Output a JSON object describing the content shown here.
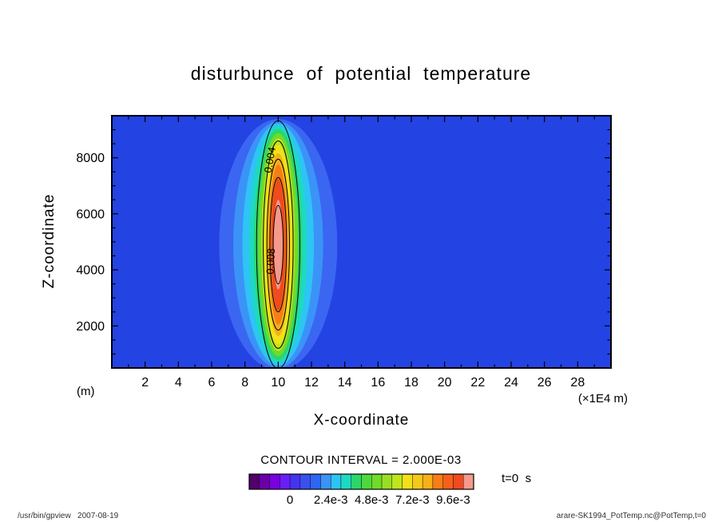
{
  "footer": {
    "left": "/usr/bin/gpview   2007-08-19",
    "right": "arare-SK1994_PotTemp.nc@PotTemp,t=0"
  },
  "chart_data": {
    "type": "heatmap",
    "subtype": "filled-contour",
    "title": "disturbunce  of  potential  temperature",
    "xlabel": "X-coordinate",
    "xunit": "(×1E4 m)",
    "ylabel": "Z-coordinate",
    "yunit": "(m)",
    "xlim": [
      0,
      30
    ],
    "ylim": [
      500,
      9500
    ],
    "x_major_ticks": [
      2,
      4,
      6,
      8,
      10,
      12,
      14,
      16,
      18,
      20,
      22,
      24,
      26,
      28
    ],
    "x_minor_ticks": [
      1,
      3,
      5,
      7,
      9,
      11,
      13,
      15,
      17,
      19,
      21,
      23,
      25,
      27,
      29
    ],
    "y_major_ticks": [
      2000,
      4000,
      6000,
      8000
    ],
    "y_minor_ticks": [
      1000,
      1500,
      2500,
      3000,
      3500,
      4500,
      5000,
      5500,
      6500,
      7000,
      7500,
      8500,
      9000
    ],
    "contour_interval": 0.002,
    "contour_interval_label": "CONTOUR INTERVAL = 2.000E-03",
    "time_label": "t=0  s",
    "background_color": "#2343e3",
    "field": {
      "description": "vertically elongated warm potential-temperature anomaly centered at x=10 (x1E4 m), z=4900 m; background value 0",
      "center_x": 10,
      "center_z": 4900,
      "peak_value": 0.011,
      "background_value": 0
    },
    "fill_levels": [
      {
        "color": "#3a66f2",
        "rx": 3.55,
        "rz": 4480
      },
      {
        "color": "#3b93f7",
        "rx": 2.7,
        "rz": 4400
      },
      {
        "color": "#2ec4f5",
        "rx": 2.15,
        "rz": 4320
      },
      {
        "color": "#1ed9c2",
        "rx": 1.75,
        "rz": 4230
      },
      {
        "color": "#2bd66b",
        "rx": 1.45,
        "rz": 4120
      },
      {
        "color": "#6fdb2b",
        "rx": 1.2,
        "rz": 3980
      },
      {
        "color": "#bfe51e",
        "rx": 1.0,
        "rz": 3800
      },
      {
        "color": "#f2e019",
        "rx": 0.84,
        "rz": 3560
      },
      {
        "color": "#f5b117",
        "rx": 0.7,
        "rz": 3260
      },
      {
        "color": "#f77e17",
        "rx": 0.56,
        "rz": 2860
      },
      {
        "color": "#f04a1e",
        "rx": 0.43,
        "rz": 2350
      },
      {
        "color": "#f5998c",
        "rx": 0.28,
        "rz": 1600
      }
    ],
    "contour_lines": [
      {
        "level": 0.002,
        "rx": 1.3,
        "rz": 4420
      },
      {
        "level": 0.004,
        "rx": 0.9,
        "rz": 3700,
        "label": "0.004",
        "label_z": 7900,
        "label_dx": -6,
        "label_angle": -80
      },
      {
        "level": 0.006,
        "rx": 0.68,
        "rz": 3050
      },
      {
        "level": 0.008,
        "rx": 0.5,
        "rz": 2400,
        "label": "0.008",
        "label_z": 4300,
        "label_dx": -5,
        "label_angle": -87
      },
      {
        "level": 0.01,
        "rx": 0.3,
        "rz": 1400
      }
    ],
    "colorbar": {
      "min": -0.0024,
      "max": 0.0108,
      "cell_interval": 0.0006,
      "colors": [
        "#52006b",
        "#6a00a8",
        "#7a00e0",
        "#6a1ef7",
        "#4633f2",
        "#3a50ee",
        "#2d66f0",
        "#3b93f7",
        "#2ec4f5",
        "#1ed9c2",
        "#2bd66b",
        "#4fd83d",
        "#6fdb2b",
        "#9ade22",
        "#bfe51e",
        "#f2e019",
        "#f5c917",
        "#f5b117",
        "#f77e17",
        "#f4601c",
        "#f04a1e",
        "#f5998c"
      ],
      "labels": [
        {
          "text": "0",
          "value": 0
        },
        {
          "text": "2.4e-3",
          "value": 0.0024
        },
        {
          "text": "4.8e-3",
          "value": 0.0048
        },
        {
          "text": "7.2e-3",
          "value": 0.0072
        },
        {
          "text": "9.6e-3",
          "value": 0.0096
        }
      ]
    }
  }
}
